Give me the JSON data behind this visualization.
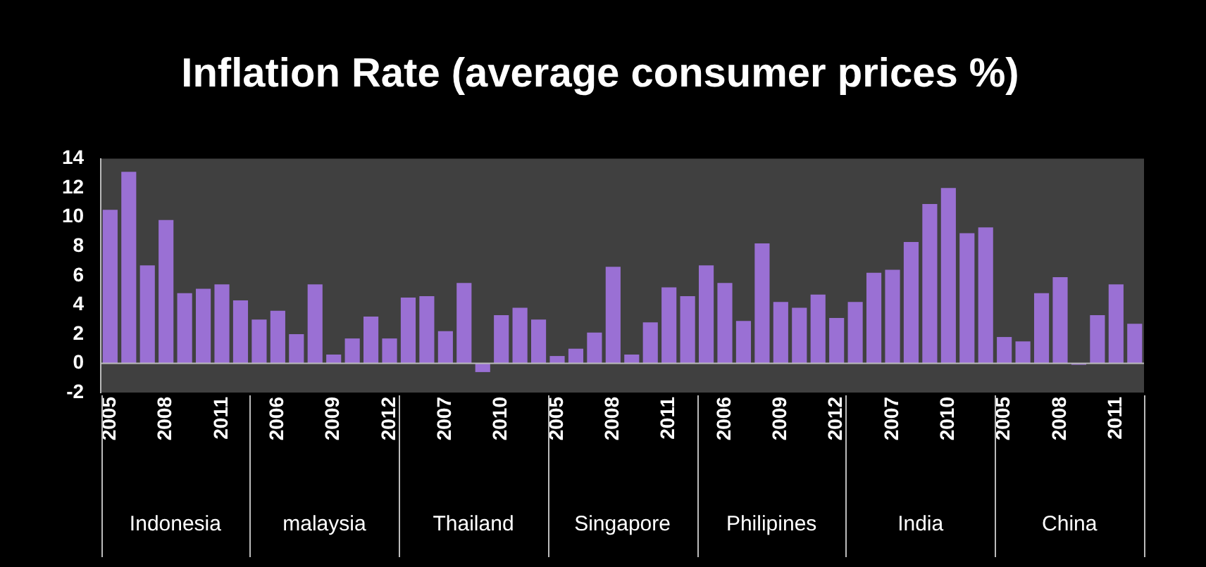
{
  "chart_data": {
    "type": "bar",
    "title": "Inflation Rate (average consumer prices %)",
    "categories": [
      "2005",
      null,
      null,
      "2008",
      null,
      null,
      "2011",
      null,
      null,
      "2006",
      null,
      null,
      "2009",
      null,
      null,
      "2012",
      null,
      null,
      "2007",
      null,
      null,
      "2010",
      null,
      null,
      "2005",
      null,
      null,
      "2008",
      null,
      null,
      "2011",
      null,
      null,
      "2006",
      null,
      null,
      "2009",
      null,
      null,
      "2012",
      null,
      null,
      "2007",
      null,
      null,
      "2010",
      null,
      null,
      "2005",
      null,
      null,
      "2008",
      null,
      null,
      "2011",
      null
    ],
    "values": [
      10.5,
      13.1,
      6.7,
      9.8,
      4.8,
      5.1,
      5.4,
      4.3,
      3.0,
      3.6,
      2.0,
      5.4,
      0.6,
      1.7,
      3.2,
      1.7,
      4.5,
      4.6,
      2.2,
      5.5,
      -0.6,
      3.3,
      3.8,
      3.0,
      0.5,
      1.0,
      2.1,
      6.6,
      0.6,
      2.8,
      5.2,
      4.6,
      6.7,
      5.5,
      2.9,
      8.2,
      4.2,
      3.8,
      4.7,
      3.1,
      4.2,
      6.2,
      6.4,
      8.3,
      10.9,
      12.0,
      8.9,
      9.3,
      1.8,
      1.5,
      4.8,
      5.9,
      -0.1,
      3.3,
      5.4,
      2.7
    ],
    "color": "#9a70d4",
    "ylim": [
      -2,
      14
    ],
    "yticks": [
      -2,
      0,
      2,
      4,
      6,
      8,
      10,
      12,
      14
    ],
    "annotations": [
      "Indonesia",
      "malaysia",
      "Thailand",
      "Singapore",
      "Philipines",
      "India",
      "China"
    ]
  }
}
